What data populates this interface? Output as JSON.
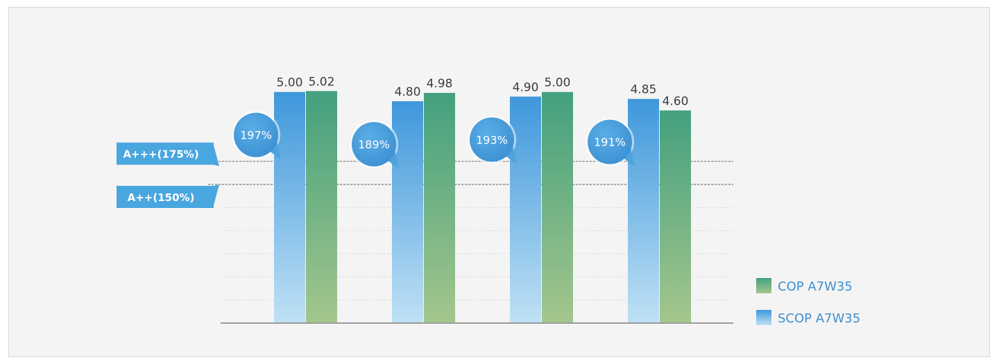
{
  "colors": {
    "cop_top": "#43a07e",
    "cop_bottom": "#a4c68c",
    "scop_top": "#3f97db",
    "scop_bottom": "#bfe1f5",
    "tag_fill": "#49a6df",
    "bubble": "#4fa3dd",
    "legend_text": "#3f8fcf"
  },
  "chart_data": {
    "type": "bar",
    "title": "",
    "xlabel": "",
    "ylabel": "",
    "ylim": [
      0,
      6.0
    ],
    "grid": true,
    "legend_position": "bottom-right",
    "categories": [
      "",
      "",
      "",
      ""
    ],
    "series": [
      {
        "name": "SCOP A7W35",
        "values": [
          5.0,
          4.8,
          4.9,
          4.85
        ],
        "labels": [
          "5.00",
          "4.80",
          "4.90",
          "4.85"
        ]
      },
      {
        "name": "COP A7W35",
        "values": [
          5.02,
          4.98,
          5.0,
          4.6
        ],
        "labels": [
          "5.02",
          "4.98",
          "5.00",
          "4.60"
        ]
      }
    ],
    "efficiency": [
      197,
      189,
      193,
      191
    ],
    "efficiency_labels": [
      "197%",
      "189%",
      "193%",
      "191%"
    ],
    "reference_lines": [
      {
        "label": "A+++(175%)",
        "value": 3.5
      },
      {
        "label": "A++(150%)",
        "value": 3.0
      }
    ],
    "legend": [
      {
        "series": "COP A7W35",
        "swatch": "cop"
      },
      {
        "series": "SCOP A7W35",
        "swatch": "scop"
      }
    ]
  }
}
